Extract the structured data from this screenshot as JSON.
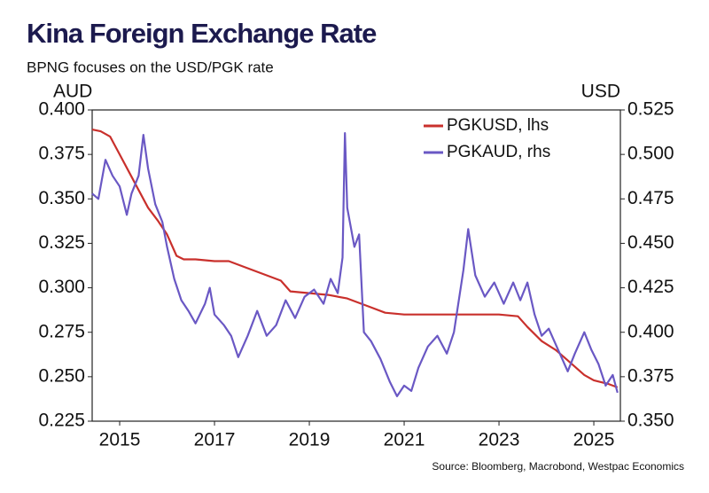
{
  "chart_data": {
    "type": "line",
    "title": "Kina Foreign Exchange Rate",
    "subtitle": "BPNG focuses on the USD/PGK rate",
    "y_label": "AUD",
    "y2_label": "USD",
    "source": "Source: Bloomberg, Macrobond, Westpac Economics",
    "legend": "top-right",
    "xlim": [
      2014.42,
      2025.56
    ],
    "xticks": [
      2015,
      2017,
      2019,
      2021,
      2023,
      2025
    ],
    "ylim": [
      0.225,
      0.4
    ],
    "yticks": [
      {
        "value": 0.4,
        "label": "0.400"
      },
      0.375,
      {
        "value": 0.35,
        "label": "0.350"
      },
      0.325,
      {
        "value": 0.3,
        "label": "0.300"
      },
      0.275,
      {
        "value": 0.25,
        "label": "0.250"
      },
      0.225
    ],
    "y2lim": [
      0.35,
      0.525
    ],
    "y2ticks": [
      0.525,
      {
        "value": 0.5,
        "label": "0.500"
      },
      0.475,
      {
        "value": 0.45,
        "label": "0.450"
      },
      0.425,
      {
        "value": 0.4,
        "label": "0.400"
      },
      0.375,
      {
        "value": 0.35,
        "label": "0.350"
      }
    ],
    "series": [
      {
        "name": "PGKUSD, lhs",
        "color": "#c9302c",
        "x": [
          2014.42,
          2014.6,
          2014.8,
          2015.0,
          2015.2,
          2015.4,
          2015.6,
          2015.8,
          2016.0,
          2016.2,
          2016.35,
          2016.6,
          2017.0,
          2017.3,
          2017.6,
          2018.0,
          2018.4,
          2018.6,
          2019.0,
          2019.4,
          2019.8,
          2020.0,
          2020.3,
          2020.6,
          2021.0,
          2021.5,
          2022.0,
          2022.5,
          2023.0,
          2023.4,
          2023.6,
          2023.9,
          2024.2,
          2024.5,
          2024.8,
          2025.0,
          2025.3,
          2025.5
        ],
        "values": [
          0.389,
          0.388,
          0.385,
          0.375,
          0.365,
          0.355,
          0.345,
          0.338,
          0.33,
          0.318,
          0.316,
          0.316,
          0.315,
          0.315,
          0.312,
          0.308,
          0.304,
          0.298,
          0.297,
          0.296,
          0.294,
          0.292,
          0.289,
          0.286,
          0.285,
          0.285,
          0.285,
          0.285,
          0.285,
          0.284,
          0.278,
          0.27,
          0.265,
          0.258,
          0.251,
          0.248,
          0.246,
          0.244
        ]
      },
      {
        "name": "PGKAUD, rhs",
        "color": "#6a58c4",
        "axis": "y2",
        "x": [
          2014.42,
          2014.55,
          2014.7,
          2014.85,
          2015.0,
          2015.15,
          2015.25,
          2015.4,
          2015.5,
          2015.6,
          2015.75,
          2015.9,
          2016.0,
          2016.15,
          2016.3,
          2016.45,
          2016.6,
          2016.8,
          2016.9,
          2017.0,
          2017.2,
          2017.35,
          2017.5,
          2017.7,
          2017.9,
          2018.1,
          2018.3,
          2018.5,
          2018.7,
          2018.9,
          2019.1,
          2019.3,
          2019.45,
          2019.6,
          2019.7,
          2019.75,
          2019.8,
          2019.95,
          2020.05,
          2020.15,
          2020.3,
          2020.5,
          2020.7,
          2020.85,
          2021.0,
          2021.15,
          2021.3,
          2021.5,
          2021.7,
          2021.9,
          2022.05,
          2022.25,
          2022.35,
          2022.5,
          2022.7,
          2022.9,
          2023.1,
          2023.3,
          2023.45,
          2023.6,
          2023.75,
          2023.9,
          2024.05,
          2024.25,
          2024.45,
          2024.6,
          2024.8,
          2024.95,
          2025.1,
          2025.25,
          2025.4,
          2025.5
        ],
        "values": [
          0.478,
          0.475,
          0.497,
          0.488,
          0.482,
          0.466,
          0.478,
          0.488,
          0.511,
          0.492,
          0.472,
          0.462,
          0.448,
          0.43,
          0.418,
          0.412,
          0.405,
          0.416,
          0.425,
          0.41,
          0.404,
          0.398,
          0.386,
          0.398,
          0.412,
          0.398,
          0.404,
          0.418,
          0.408,
          0.42,
          0.424,
          0.416,
          0.43,
          0.422,
          0.442,
          0.512,
          0.47,
          0.448,
          0.455,
          0.4,
          0.395,
          0.385,
          0.372,
          0.364,
          0.37,
          0.367,
          0.38,
          0.392,
          0.398,
          0.388,
          0.4,
          0.435,
          0.458,
          0.432,
          0.42,
          0.428,
          0.416,
          0.428,
          0.418,
          0.428,
          0.41,
          0.398,
          0.402,
          0.39,
          0.378,
          0.388,
          0.4,
          0.39,
          0.382,
          0.37,
          0.376,
          0.366
        ]
      }
    ]
  }
}
